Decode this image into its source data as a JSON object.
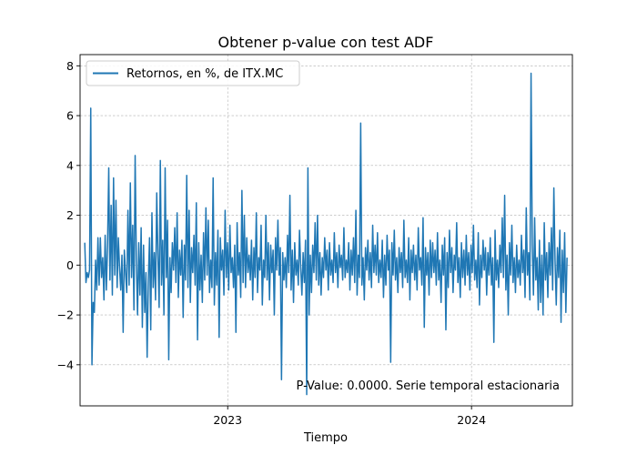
{
  "chart_data": {
    "type": "line",
    "title": "Obtener p-value con test ADF",
    "xlabel": "Tiempo",
    "ylabel": "",
    "x_range": [
      "2022-05-25",
      "2024-05-31"
    ],
    "x_ticks": [
      {
        "date": "2023-01-01",
        "label": "2023"
      },
      {
        "date": "2024-01-01",
        "label": "2024"
      }
    ],
    "ylim": [
      -5.65,
      8.45
    ],
    "y_ticks": [
      {
        "value": -4,
        "label": "−4"
      },
      {
        "value": -2,
        "label": "−2"
      },
      {
        "value": 0,
        "label": "0"
      },
      {
        "value": 2,
        "label": "2"
      },
      {
        "value": 4,
        "label": "4"
      },
      {
        "value": 6,
        "label": "6"
      },
      {
        "value": 8,
        "label": "8"
      }
    ],
    "grid": true,
    "legend_position": "top-left",
    "series": [
      {
        "name": "Retornos, en %, de ITX.MC",
        "color": "#1f77b4",
        "x_start": "2022-06-01",
        "x_end": "2024-05-23",
        "values": [
          0.9,
          -0.7,
          -0.3,
          -0.5,
          -0.2,
          6.3,
          -4.0,
          -1.5,
          -1.9,
          0.2,
          -1.0,
          1.1,
          -0.8,
          1.1,
          -0.5,
          0.3,
          -1.4,
          1.2,
          -1.0,
          0.8,
          3.9,
          -0.6,
          2.4,
          -1.2,
          3.5,
          -0.4,
          2.6,
          -0.9,
          1.1,
          -0.1,
          -1.0,
          0.4,
          -2.7,
          0.6,
          -0.3,
          -1.1,
          2.2,
          -0.8,
          3.3,
          -0.5,
          1.6,
          -1.8,
          4.4,
          0.2,
          -2.0,
          0.9,
          -1.2,
          1.5,
          -2.5,
          0.8,
          -1.9,
          -0.3,
          -3.7,
          -0.6,
          1.1,
          -2.6,
          2.1,
          -0.9,
          0.5,
          -1.4,
          2.9,
          0.4,
          -1.7,
          4.2,
          -0.8,
          1.0,
          -2.0,
          3.9,
          -0.5,
          1.8,
          -3.8,
          0.3,
          -1.1,
          0.9,
          -0.2,
          1.5,
          -0.7,
          2.1,
          -1.3,
          0.6,
          -0.4,
          1.0,
          -2.1,
          0.8,
          -0.6,
          3.6,
          -0.9,
          2.2,
          -1.5,
          0.7,
          -0.3,
          1.2,
          -0.8,
          2.5,
          -3.0,
          0.9,
          -1.0,
          0.4,
          -1.5,
          1.3,
          -0.6,
          2.3,
          -0.4,
          1.8,
          -1.1,
          0.2,
          -0.9,
          3.5,
          -1.6,
          0.5,
          -0.8,
          1.4,
          -2.9,
          1.1,
          -0.2,
          0.6,
          -1.2,
          2.2,
          -0.5,
          0.9,
          -1.0,
          1.6,
          -0.3,
          0.3,
          -0.9,
          0.8,
          -2.7,
          1.7,
          -0.4,
          0.5,
          -1.3,
          3.0,
          -0.7,
          2.0,
          -0.9,
          1.1,
          -0.3,
          0.4,
          -0.6,
          1.0,
          -1.4,
          0.7,
          -0.5,
          2.1,
          -1.1,
          0.3,
          -0.2,
          1.6,
          -1.6,
          0.2,
          -0.5,
          2.0,
          -0.6,
          0.9,
          -1.4,
          0.8,
          -0.3,
          0.6,
          -2.0,
          1.1,
          -0.2,
          1.8,
          -0.4,
          0.7,
          -4.6,
          0.5,
          -0.6,
          0.3,
          -0.9,
          1.2,
          -0.3,
          2.8,
          -1.0,
          0.6,
          -1.5,
          0.9,
          -0.4,
          0.2,
          -0.8,
          1.4,
          -0.1,
          -1.2,
          0.5,
          -0.7,
          1.0,
          -5.2,
          3.9,
          -2.0,
          0.4,
          -1.1,
          0.8,
          -0.3,
          1.7,
          -0.6,
          2.0,
          -0.8,
          0.5,
          -1.2,
          0.3,
          -0.5,
          1.1,
          -0.2,
          0.6,
          -1.0,
          0.9,
          -0.4,
          0.2,
          -0.7,
          1.3,
          -0.3,
          0.5,
          -0.9,
          0.8,
          -0.1,
          0.4,
          -0.6,
          1.5,
          -0.5,
          0.2,
          -0.3,
          0.9,
          -1.0,
          0.6,
          -0.4,
          1.1,
          -0.7,
          2.2,
          -1.2,
          0.4,
          -0.5,
          5.7,
          -0.8,
          0.3,
          -1.4,
          0.7,
          -0.2,
          1.0,
          -0.6,
          0.5,
          -0.9,
          1.6,
          -0.3,
          0.8,
          -0.4,
          1.3,
          -0.7,
          0.2,
          -0.5,
          1.0,
          -1.3,
          0.4,
          -0.8,
          1.2,
          -0.2,
          0.6,
          -3.9,
          0.9,
          -0.4,
          1.4,
          -0.6,
          0.3,
          -1.1,
          0.7,
          -0.3,
          0.5,
          -0.9,
          1.8,
          -0.5,
          0.2,
          -0.7,
          1.1,
          -1.4,
          0.6,
          -0.3,
          0.8,
          -0.6,
          0.4,
          -1.0,
          1.5,
          -0.2,
          0.3,
          -0.8,
          1.9,
          -2.5,
          0.7,
          -0.4,
          0.5,
          -1.2,
          1.0,
          -0.5,
          0.9,
          -0.3,
          0.6,
          -0.8,
          1.3,
          -0.6,
          0.2,
          -1.5,
          0.8,
          -0.4,
          1.1,
          -2.6,
          0.5,
          -0.9,
          1.4,
          -0.3,
          0.7,
          -1.1,
          0.4,
          -0.2,
          1.7,
          -0.7,
          0.3,
          -1.3,
          0.9,
          -0.5,
          0.6,
          -0.8,
          1.2,
          -0.4,
          0.5,
          -1.0,
          0.8,
          -0.3,
          1.6,
          -0.6,
          0.2,
          -0.9,
          1.3,
          -1.6,
          0.4,
          -0.5,
          1.0,
          -0.2,
          0.7,
          -1.2,
          0.5,
          -0.4,
          1.1,
          -0.8,
          0.3,
          -3.1,
          1.4,
          -0.6,
          0.2,
          -0.9,
          0.8,
          -0.3,
          1.9,
          -0.5,
          2.8,
          -1.0,
          0.4,
          -2.0,
          0.9,
          -0.4,
          1.6,
          -0.7,
          0.3,
          -1.1,
          0.8,
          -0.5,
          0.2,
          -0.8,
          1.2,
          -0.3,
          0.6,
          -1.3,
          2.3,
          -0.4,
          0.5,
          -1.4,
          7.7,
          0.8,
          -1.2,
          1.9,
          -0.6,
          0.3,
          -1.8,
          1.0,
          -1.5,
          0.4,
          -2.0,
          1.7,
          -0.6,
          0.5,
          -1.3,
          0.9,
          -0.4,
          1.5,
          -1.0,
          3.1,
          0.2,
          -1.6,
          0.7,
          -0.5,
          1.4,
          -2.3,
          0.6,
          -1.1,
          1.3,
          -1.9,
          0.3
        ]
      }
    ],
    "annotations": [
      {
        "text": "P-Value: 0.0000. Serie temporal estacionaria",
        "position": "bottom-right"
      }
    ]
  }
}
